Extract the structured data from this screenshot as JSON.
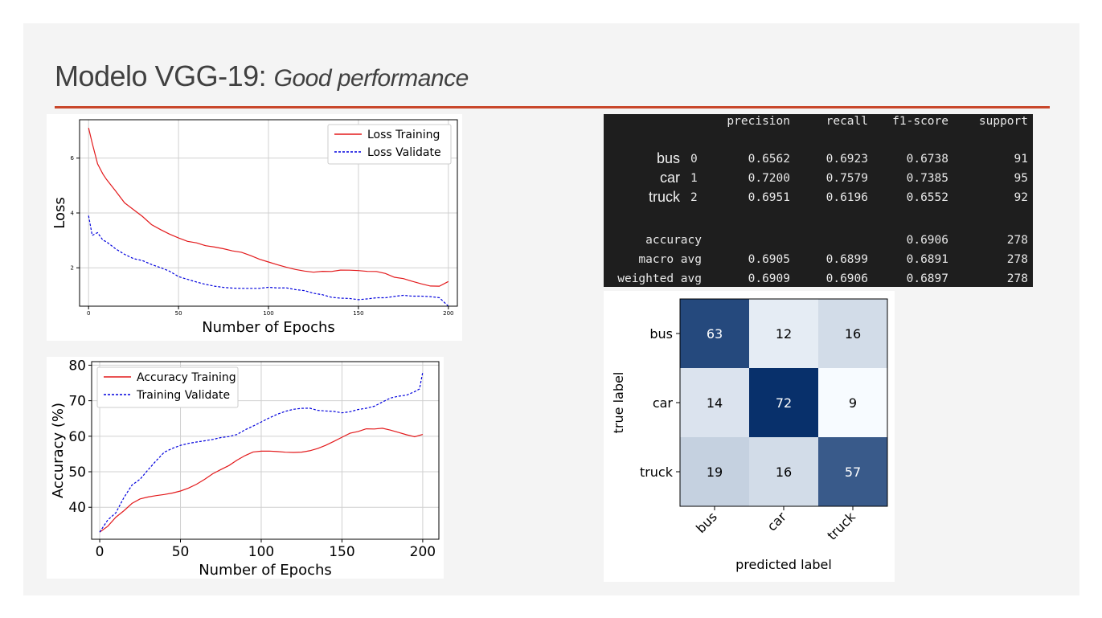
{
  "slide": {
    "title_main": "Modelo  VGG-19",
    "title_sep": ": ",
    "title_sub": "Good performance",
    "accent_color": "#c9472b"
  },
  "chart_data": [
    {
      "type": "line",
      "xlabel": "Number of Epochs",
      "ylabel": "Loss",
      "xlim": [
        -5,
        205
      ],
      "ylim": [
        0.6,
        7.4
      ],
      "xticks": [
        0,
        50,
        100,
        150,
        200
      ],
      "yticks": [
        2,
        4,
        6
      ],
      "grid": true,
      "legend_position": "top-right",
      "series": [
        {
          "name": "Loss Training",
          "color": "#e31a1c",
          "style": "solid",
          "x": [
            0,
            2,
            5,
            8,
            10,
            15,
            20,
            25,
            30,
            35,
            40,
            45,
            50,
            55,
            60,
            65,
            70,
            75,
            80,
            85,
            90,
            95,
            100,
            105,
            110,
            115,
            120,
            125,
            130,
            135,
            140,
            145,
            150,
            155,
            160,
            165,
            170,
            175,
            180,
            185,
            190,
            195,
            200
          ],
          "y": [
            7.1,
            6.5,
            5.7,
            5.3,
            5.1,
            4.7,
            4.3,
            4.1,
            3.9,
            3.65,
            3.5,
            3.35,
            3.2,
            3.05,
            2.95,
            2.8,
            2.7,
            2.6,
            2.5,
            2.45,
            2.35,
            2.25,
            2.2,
            2.15,
            2.1,
            2.05,
            2.0,
            1.95,
            1.95,
            1.9,
            1.9,
            1.85,
            1.8,
            1.75,
            1.75,
            1.7,
            1.6,
            1.6,
            1.55,
            1.5,
            1.45,
            1.45,
            1.5
          ]
        },
        {
          "name": "Loss Validate",
          "color": "#0000dd",
          "style": "dashed",
          "x": [
            0,
            2,
            5,
            8,
            10,
            15,
            20,
            25,
            30,
            35,
            40,
            45,
            50,
            55,
            60,
            65,
            70,
            75,
            80,
            85,
            90,
            95,
            100,
            105,
            110,
            115,
            120,
            125,
            130,
            135,
            140,
            145,
            150,
            155,
            160,
            165,
            170,
            175,
            180,
            185,
            190,
            195,
            200
          ],
          "y": [
            3.9,
            3.3,
            3.4,
            3.1,
            3.0,
            2.7,
            2.45,
            2.25,
            2.15,
            2.0,
            1.9,
            1.8,
            1.65,
            1.6,
            1.55,
            1.5,
            1.45,
            1.4,
            1.35,
            1.3,
            1.25,
            1.2,
            1.2,
            1.15,
            1.15,
            1.1,
            1.1,
            1.05,
            1.05,
            1.0,
            1.0,
            1.0,
            0.95,
            0.95,
            0.95,
            0.9,
            0.9,
            0.9,
            0.85,
            0.85,
            0.85,
            0.85,
            0.6
          ]
        }
      ]
    },
    {
      "type": "line",
      "xlabel": "Number of Epochs",
      "ylabel": "Accuracy (%)",
      "xlim": [
        -5,
        210
      ],
      "ylim": [
        31,
        81
      ],
      "xticks": [
        0,
        50,
        100,
        150,
        200
      ],
      "yticks": [
        40,
        50,
        60,
        70,
        80
      ],
      "grid": true,
      "legend_position": "top-left",
      "series": [
        {
          "name": "Accuracy Training",
          "color": "#e31a1c",
          "style": "solid",
          "x": [
            0,
            5,
            10,
            15,
            20,
            25,
            30,
            35,
            40,
            45,
            50,
            55,
            60,
            65,
            70,
            75,
            80,
            85,
            90,
            95,
            100,
            105,
            110,
            115,
            120,
            125,
            130,
            135,
            140,
            145,
            150,
            155,
            160,
            165,
            170,
            175,
            180,
            185,
            190,
            195,
            200
          ],
          "y": [
            33,
            34,
            36,
            37.5,
            39.5,
            41,
            42,
            43,
            44,
            45,
            46,
            47,
            48,
            49,
            50,
            50.5,
            51,
            52,
            53,
            54,
            54.5,
            55,
            55.5,
            56,
            56.5,
            57,
            57.5,
            58,
            58.5,
            59,
            59.5,
            60,
            60,
            60.5,
            60.5,
            61,
            61,
            61,
            61,
            61,
            60.5
          ]
        },
        {
          "name": "Training Validate",
          "color": "#0000dd",
          "style": "dashed",
          "x": [
            0,
            5,
            10,
            15,
            20,
            25,
            30,
            35,
            40,
            45,
            50,
            55,
            60,
            65,
            70,
            75,
            80,
            85,
            90,
            95,
            100,
            105,
            110,
            115,
            120,
            125,
            130,
            135,
            140,
            145,
            150,
            155,
            160,
            165,
            170,
            175,
            180,
            185,
            190,
            195,
            198,
            200
          ],
          "y": [
            33,
            38,
            40,
            44,
            47,
            48,
            50,
            52,
            54,
            55,
            56,
            57,
            58,
            59,
            60,
            61,
            61.5,
            62,
            63,
            63.5,
            64,
            64.5,
            65,
            65.5,
            66,
            66.5,
            67,
            67,
            67.5,
            68,
            68,
            68.5,
            69,
            69,
            69,
            69.5,
            70,
            70,
            70,
            71,
            72,
            78
          ]
        }
      ]
    },
    {
      "type": "table",
      "columns": [
        "",
        "",
        "precision",
        "recall",
        "f1-score",
        "support"
      ],
      "rows": [
        [
          "bus",
          "0",
          "0.6562",
          "0.6923",
          "0.6738",
          "91"
        ],
        [
          "car",
          "1",
          "0.7200",
          "0.7579",
          "0.7385",
          "95"
        ],
        [
          "truck",
          "2",
          "0.6951",
          "0.6196",
          "0.6552",
          "92"
        ],
        [
          "accuracy",
          "",
          "",
          "",
          "0.6906",
          "278"
        ],
        [
          "macro avg",
          "",
          "0.6905",
          "0.6899",
          "0.6891",
          "278"
        ],
        [
          "weighted avg",
          "",
          "0.6909",
          "0.6906",
          "0.6897",
          "278"
        ]
      ]
    },
    {
      "type": "heatmap",
      "xlabel": "predicted label",
      "ylabel": "true label",
      "x_categories": [
        "bus",
        "car",
        "truck"
      ],
      "y_categories": [
        "bus",
        "car",
        "truck"
      ],
      "values": [
        [
          63,
          12,
          16
        ],
        [
          14,
          72,
          9
        ],
        [
          19,
          16,
          57
        ]
      ],
      "colormap": "Blues",
      "vmin": 9,
      "vmax": 72
    }
  ]
}
